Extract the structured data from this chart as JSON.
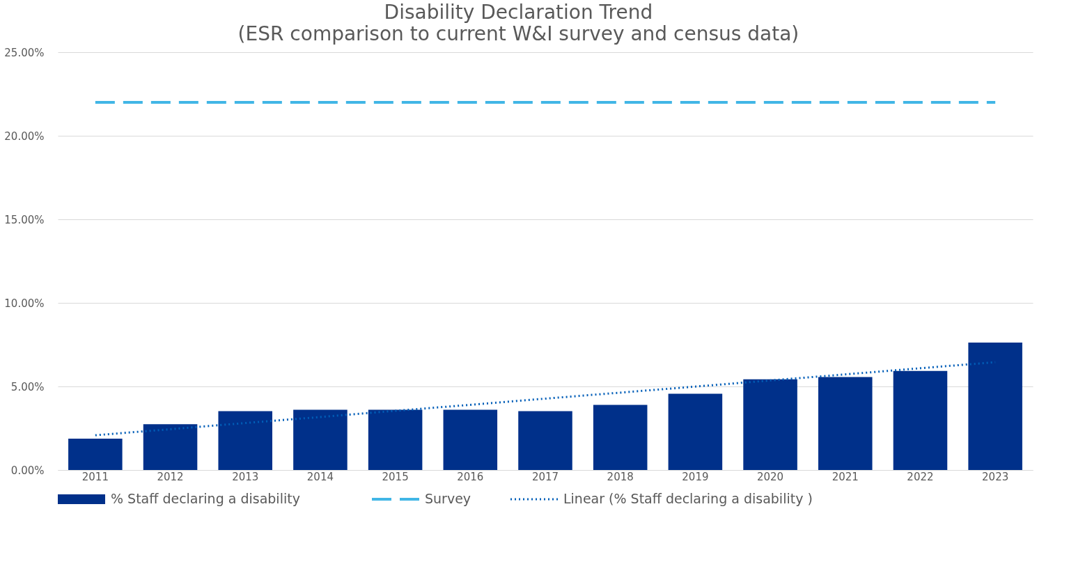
{
  "chart_data": {
    "type": "bar",
    "title": "Disability Declaration Trend",
    "subtitle": "(ESR comparison to current W&I survey and census data)",
    "categories": [
      "2011",
      "2012",
      "2013",
      "2014",
      "2015",
      "2016",
      "2017",
      "2018",
      "2019",
      "2020",
      "2021",
      "2022",
      "2023"
    ],
    "series": [
      {
        "name": "% Staff declaring a disability",
        "color": "#00308a",
        "values": [
          1.87,
          2.74,
          3.52,
          3.6,
          3.6,
          3.6,
          3.52,
          3.9,
          4.56,
          5.43,
          5.56,
          5.93,
          7.63
        ]
      },
      {
        "name": "Survey",
        "type": "line",
        "line_style": "dashed",
        "color": "#41b6e6",
        "values": [
          22,
          22,
          22,
          22,
          22,
          22,
          22,
          22,
          22,
          22,
          22,
          22,
          22
        ]
      },
      {
        "name": "Linear (% Staff declaring a disability )",
        "type": "line",
        "line_style": "dotted",
        "color": "#005eb8",
        "values": [
          2.08,
          2.44,
          2.81,
          3.17,
          3.54,
          3.9,
          4.27,
          4.63,
          4.99,
          5.36,
          5.72,
          6.09,
          6.45
        ]
      }
    ],
    "ylim": [
      0,
      25
    ],
    "yticks": [
      {
        "value": 0,
        "label": "0.00%"
      },
      {
        "value": 5,
        "label": "5.00%"
      },
      {
        "value": 10,
        "label": "10.00%"
      },
      {
        "value": 15,
        "label": "15.00%"
      },
      {
        "value": 20,
        "label": "20.00%"
      },
      {
        "value": 25,
        "label": "25.00%"
      }
    ],
    "grid": "y",
    "legend": "bottom",
    "marker": "none"
  }
}
